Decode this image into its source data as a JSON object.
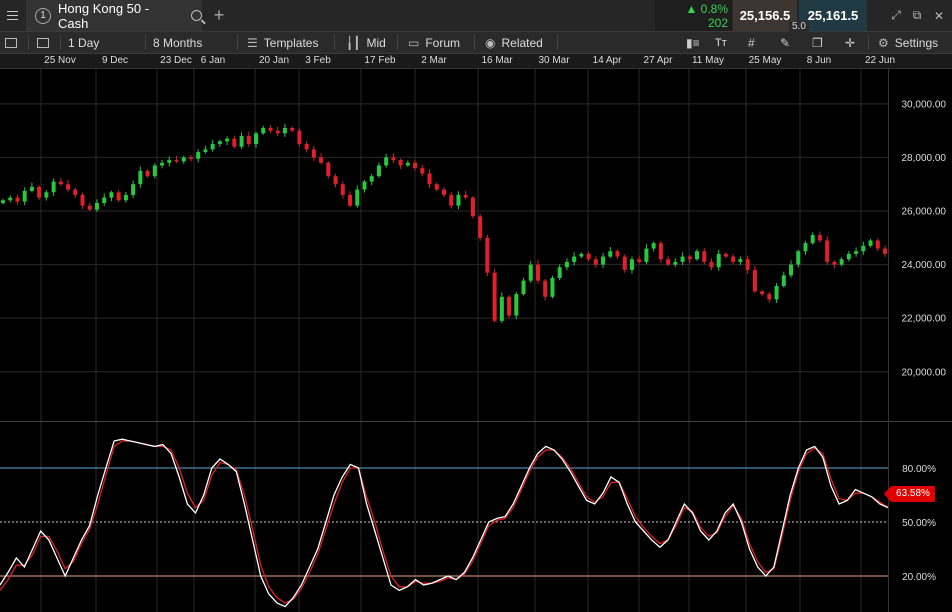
{
  "window": {
    "instrument_number": "1",
    "instrument_name": "Hong Kong 50 - Cash",
    "add_tab": "+",
    "change_pct": "▲ 0.8%",
    "change_pts": "202",
    "sell_price": "25,156.5",
    "buy_price": "25,161.5",
    "spread": "5.0",
    "icons": [
      "menu-icon",
      "search-icon",
      "plus-icon",
      "expand-icon",
      "popout-icon",
      "close-icon"
    ]
  },
  "toolbar": {
    "interval": "1 Day",
    "period": "8 Months",
    "templates": "Templates",
    "mid": "Mid",
    "forum": "Forum",
    "related": "Related",
    "text_tool": "Tт",
    "settings": "Settings",
    "icons": [
      "list-icon",
      "layout-icon",
      "templates-icon",
      "candles-icon",
      "forum-icon",
      "eye-icon",
      "ruler-icon",
      "text-icon",
      "grid-icon",
      "drawing-icon",
      "copy-icon",
      "crosshair-icon",
      "gear-icon"
    ]
  },
  "dates": [
    "25 Nov",
    "9 Dec",
    "23 Dec",
    "6 Jan",
    "20 Jan",
    "3 Feb",
    "17 Feb",
    "2 Mar",
    "16 Mar",
    "30 Mar",
    "14 Apr",
    "27 Apr",
    "11 May",
    "25 May",
    "8 Jun",
    "22 Jun"
  ],
  "colors": {
    "up": "#28c840",
    "down": "#e0202a",
    "rsi": "#ffffff",
    "signal": "#e02020",
    "upper": "#5fa8d3",
    "lower": "#e8a87c",
    "grid": "#2a2a2a"
  },
  "chart_data": [
    {
      "type": "candlestick",
      "y_ticks": [
        "30,000.00",
        "28,000.00",
        "26,000.00",
        "24,000.00",
        "22,000.00",
        "20,000.00"
      ],
      "ylim": [
        18200,
        31300
      ],
      "close": [
        26400,
        26500,
        26350,
        26750,
        26900,
        26500,
        26700,
        27100,
        27000,
        26800,
        26600,
        26200,
        26050,
        26300,
        26500,
        26700,
        26400,
        26600,
        27000,
        27500,
        27300,
        27700,
        27800,
        27900,
        27850,
        28000,
        27950,
        28200,
        28300,
        28500,
        28600,
        28700,
        28400,
        28800,
        28500,
        28900,
        29100,
        29000,
        28900,
        29100,
        29000,
        28500,
        28300,
        28000,
        27800,
        27300,
        27000,
        26600,
        26200,
        26800,
        27100,
        27300,
        27700,
        28000,
        27900,
        27700,
        27800,
        27600,
        27400,
        27000,
        26800,
        26600,
        26200,
        26600,
        26500,
        25800,
        25000,
        23700,
        21900,
        22800,
        22100,
        22900,
        23400,
        24000,
        23400,
        22800,
        23500,
        23900,
        24100,
        24300,
        24400,
        24200,
        24000,
        24300,
        24500,
        24300,
        23800,
        24200,
        24100,
        24600,
        24800,
        24200,
        24000,
        24100,
        24300,
        24200,
        24500,
        24100,
        23900,
        24400,
        24300,
        24100,
        24200,
        23800,
        23000,
        22900,
        22700,
        23200,
        23600,
        24000,
        24500,
        24800,
        25100,
        24900,
        24100,
        24000,
        24200,
        24400,
        24500,
        24700,
        24900,
        24600,
        24400
      ]
    },
    {
      "type": "line",
      "y_ticks": [
        "80.00%",
        "50.00%",
        "20.00%"
      ],
      "levels": [
        80,
        50,
        20
      ],
      "current": "63.58%",
      "ylim": [
        0,
        105
      ],
      "series": [
        {
          "values": [
            15,
            22,
            30,
            25,
            35,
            45,
            40,
            30,
            20,
            30,
            40,
            48,
            65,
            80,
            95,
            96,
            95,
            94,
            93,
            92,
            93,
            88,
            75,
            60,
            55,
            65,
            80,
            85,
            82,
            78,
            60,
            40,
            20,
            10,
            5,
            3,
            8,
            15,
            25,
            35,
            50,
            65,
            75,
            82,
            80,
            60,
            45,
            30,
            15,
            12,
            14,
            18,
            15,
            16,
            18,
            20,
            18,
            22,
            30,
            40,
            50,
            52,
            53,
            60,
            70,
            80,
            88,
            92,
            90,
            85,
            78,
            70,
            62,
            60,
            66,
            75,
            72,
            60,
            50,
            45,
            40,
            36,
            40,
            50,
            60,
            55,
            45,
            40,
            45,
            55,
            60,
            50,
            35,
            25,
            20,
            25,
            45,
            65,
            80,
            90,
            92,
            86,
            70,
            60,
            62,
            68,
            66,
            64,
            60,
            58
          ]
        },
        {
          "values": [
            12,
            18,
            26,
            26,
            32,
            42,
            42,
            34,
            24,
            28,
            38,
            46,
            60,
            76,
            92,
            95,
            95,
            94,
            93,
            92,
            92,
            90,
            80,
            66,
            58,
            62,
            76,
            83,
            82,
            79,
            65,
            46,
            26,
            14,
            8,
            5,
            7,
            13,
            22,
            32,
            46,
            60,
            72,
            80,
            80,
            64,
            50,
            34,
            20,
            14,
            14,
            17,
            16,
            16,
            17,
            19,
            18,
            21,
            28,
            38,
            48,
            51,
            52,
            58,
            68,
            78,
            86,
            90,
            90,
            86,
            80,
            72,
            64,
            61,
            64,
            72,
            72,
            63,
            53,
            47,
            42,
            38,
            40,
            48,
            58,
            56,
            47,
            42,
            44,
            53,
            59,
            52,
            38,
            28,
            22,
            24,
            42,
            62,
            78,
            88,
            91,
            88,
            74,
            63,
            62,
            66,
            66,
            64,
            61,
            58
          ]
        }
      ]
    }
  ]
}
